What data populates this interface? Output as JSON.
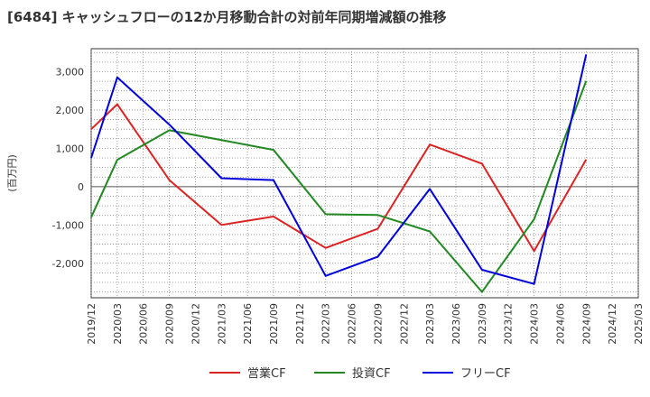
{
  "chart_data": {
    "type": "line",
    "title": "[6484]  キャッシュフローの12か月移動合計の対前年同期増減額の推移",
    "ylabel": "(百万円)",
    "xlabel": "",
    "categories": [
      "2019/12",
      "2020/03",
      "2020/06",
      "2020/09",
      "2020/12",
      "2021/03",
      "2021/06",
      "2021/09",
      "2021/12",
      "2022/03",
      "2022/06",
      "2022/09",
      "2022/12",
      "2023/03",
      "2023/06",
      "2023/09",
      "2023/12",
      "2024/03",
      "2024/06",
      "2024/09",
      "2024/12",
      "2025/03"
    ],
    "yticks": [
      3000,
      2000,
      1000,
      0,
      -1000,
      -2000
    ],
    "ytick_labels": [
      "3,000",
      "2,000",
      "1,000",
      "0",
      "-1,000",
      "-2,000"
    ],
    "ylim": [
      -2900,
      3600
    ],
    "grid": true,
    "legend_position": "bottom",
    "series": [
      {
        "name": "営業CF",
        "color": "#dd2222",
        "values": [
          1500,
          2150,
          null,
          170,
          null,
          -1000,
          null,
          -780,
          null,
          -1600,
          null,
          -1100,
          null,
          1100,
          null,
          600,
          null,
          -1680,
          null,
          710,
          null,
          null
        ]
      },
      {
        "name": "投資CF",
        "color": "#228822",
        "values": [
          -800,
          700,
          null,
          1470,
          null,
          null,
          null,
          960,
          null,
          -720,
          null,
          -740,
          null,
          -1170,
          null,
          -2750,
          null,
          -850,
          null,
          2760,
          null,
          null
        ]
      },
      {
        "name": "フリーCF",
        "color": "#0000dd",
        "values": [
          750,
          2850,
          null,
          1620,
          null,
          220,
          null,
          170,
          null,
          -2330,
          null,
          -1830,
          null,
          -60,
          null,
          -2170,
          null,
          -2540,
          null,
          3450,
          null,
          null
        ]
      }
    ]
  }
}
